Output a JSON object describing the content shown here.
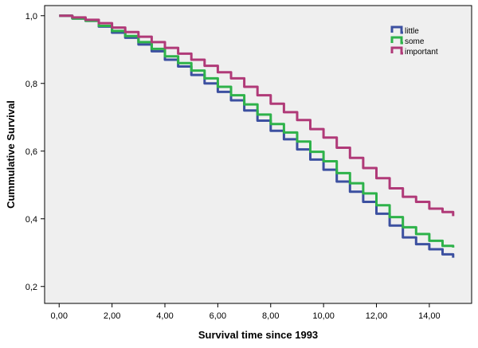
{
  "chart_data": {
    "type": "line",
    "title": "",
    "xlabel": "Survival time since 1993",
    "ylabel": "Cummulative Survival",
    "xlim": [
      0,
      14.9
    ],
    "ylim": [
      0.2,
      1.0
    ],
    "x_ticks": [
      0,
      2,
      4,
      6,
      8,
      10,
      12,
      14
    ],
    "x_tick_labels": [
      "0,00",
      "2,00",
      "4,00",
      "6,00",
      "8,00",
      "10,00",
      "12,00",
      "14,00"
    ],
    "y_ticks": [
      0.2,
      0.4,
      0.6,
      0.8,
      1.0
    ],
    "y_tick_labels": [
      "0,2",
      "0,4",
      "0,6",
      "0,8",
      "1,0"
    ],
    "grid": false,
    "legend_position": "top-right",
    "background": "#efefef",
    "series": [
      {
        "name": "little",
        "color": "#3c50a0",
        "x": [
          0,
          0.5,
          1,
          1.5,
          2,
          2.5,
          3,
          3.5,
          4,
          4.5,
          5,
          5.5,
          6,
          6.5,
          7,
          7.5,
          8,
          8.5,
          9,
          9.5,
          10,
          10.5,
          11,
          11.5,
          12,
          12.5,
          13,
          13.5,
          14,
          14.5,
          14.9
        ],
        "y": [
          1.0,
          0.992,
          0.985,
          0.968,
          0.95,
          0.935,
          0.915,
          0.895,
          0.87,
          0.85,
          0.825,
          0.8,
          0.775,
          0.75,
          0.72,
          0.69,
          0.66,
          0.635,
          0.605,
          0.575,
          0.545,
          0.51,
          0.48,
          0.45,
          0.415,
          0.38,
          0.345,
          0.325,
          0.31,
          0.295,
          0.285
        ]
      },
      {
        "name": "some",
        "color": "#2eb24a",
        "x": [
          0,
          0.5,
          1,
          1.5,
          2,
          2.5,
          3,
          3.5,
          4,
          4.5,
          5,
          5.5,
          6,
          6.5,
          7,
          7.5,
          8,
          8.5,
          9,
          9.5,
          10,
          10.5,
          11,
          11.5,
          12,
          12.5,
          13,
          13.5,
          14,
          14.5,
          14.9
        ],
        "y": [
          1.0,
          0.992,
          0.985,
          0.97,
          0.955,
          0.94,
          0.922,
          0.902,
          0.88,
          0.86,
          0.838,
          0.815,
          0.79,
          0.765,
          0.738,
          0.708,
          0.68,
          0.655,
          0.628,
          0.598,
          0.57,
          0.535,
          0.505,
          0.475,
          0.44,
          0.405,
          0.375,
          0.355,
          0.335,
          0.32,
          0.315
        ]
      },
      {
        "name": "important",
        "color": "#b03a78",
        "x": [
          0,
          0.5,
          1,
          1.5,
          2,
          2.5,
          3,
          3.5,
          4,
          4.5,
          5,
          5.5,
          6,
          6.5,
          7,
          7.5,
          8,
          8.5,
          9,
          9.5,
          10,
          10.5,
          11,
          11.5,
          12,
          12.5,
          13,
          13.5,
          14,
          14.5,
          14.9
        ],
        "y": [
          1.0,
          0.995,
          0.988,
          0.978,
          0.965,
          0.952,
          0.938,
          0.922,
          0.905,
          0.888,
          0.87,
          0.852,
          0.833,
          0.815,
          0.79,
          0.765,
          0.74,
          0.715,
          0.692,
          0.665,
          0.64,
          0.61,
          0.58,
          0.55,
          0.52,
          0.49,
          0.465,
          0.45,
          0.43,
          0.42,
          0.408
        ]
      }
    ]
  }
}
